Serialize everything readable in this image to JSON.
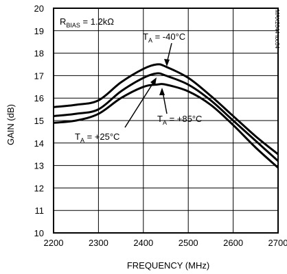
{
  "chart_data": {
    "type": "line",
    "title": "",
    "xlabel": "FREQUENCY (MHz)",
    "ylabel": "GAIN (dB)",
    "xlim": [
      2200,
      2700
    ],
    "ylim": [
      10,
      20
    ],
    "xticks": [
      "2200",
      "2300",
      "2400",
      "2500",
      "2600",
      "2700"
    ],
    "yticks": [
      "10",
      "11",
      "12",
      "13",
      "14",
      "15",
      "16",
      "17",
      "18",
      "19",
      "20"
    ],
    "grid": true,
    "series": [
      {
        "name": "T_A = -40°C",
        "x": [
          2200,
          2250,
          2300,
          2350,
          2400,
          2430,
          2450,
          2500,
          2550,
          2600,
          2650,
          2700
        ],
        "y": [
          15.6,
          15.7,
          15.9,
          16.7,
          17.3,
          17.5,
          17.4,
          16.9,
          16.1,
          15.2,
          14.3,
          13.5
        ]
      },
      {
        "name": "T_A = +25°C",
        "x": [
          2200,
          2250,
          2300,
          2350,
          2400,
          2430,
          2450,
          2500,
          2550,
          2600,
          2650,
          2700
        ],
        "y": [
          15.2,
          15.3,
          15.5,
          16.3,
          16.9,
          17.1,
          17.0,
          16.6,
          15.9,
          15.0,
          14.1,
          13.2
        ]
      },
      {
        "name": "T_A = +85°C",
        "x": [
          2200,
          2250,
          2300,
          2350,
          2400,
          2430,
          2450,
          2500,
          2550,
          2600,
          2650,
          2700
        ],
        "y": [
          14.9,
          15.0,
          15.3,
          16.0,
          16.5,
          16.6,
          16.6,
          16.3,
          15.7,
          14.8,
          13.8,
          12.9
        ]
      }
    ],
    "annotations": {
      "rbias": {
        "main": "R",
        "sub": "BIAS",
        "rest": " = 1.2kΩ"
      },
      "label_m40": {
        "main": "T",
        "sub": "A",
        "rest": " = -40°C"
      },
      "label_p25": {
        "main": "T",
        "sub": "A",
        "rest": " = +25°C"
      },
      "label_p85": {
        "main": "T",
        "sub": "A",
        "rest": " = +85°C"
      },
      "side_code": "MAX2644 toc04"
    }
  }
}
